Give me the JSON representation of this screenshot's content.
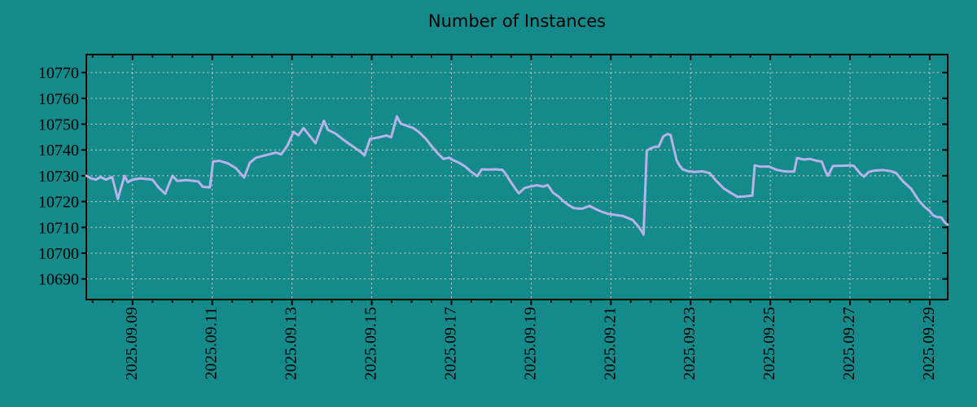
{
  "colors": {
    "background": "#148a8a",
    "line": "#b7b3ea",
    "grid": "#d2d2d2",
    "frame": "#000000",
    "text": "#000000"
  },
  "chart_data": {
    "type": "line",
    "title": "Number of Instances",
    "legend": false,
    "grid": true,
    "x_axis": {
      "unit": "date (2025 September, fractional day-of-month)",
      "xlim": [
        7.84,
        29.45
      ],
      "tick_positions": [
        9,
        11,
        13,
        15,
        17,
        19,
        21,
        23,
        25,
        27,
        29
      ],
      "tick_labels": [
        "2025.09.09",
        "2025.09.11",
        "2025.09.13",
        "2025.09.15",
        "2025.09.17",
        "2025.09.19",
        "2025.09.21",
        "2025.09.23",
        "2025.09.25",
        "2025.09.27",
        "2025.09.29"
      ],
      "minor_tick_step": 0.5
    },
    "y_axis": {
      "ylim": [
        10682,
        10777
      ],
      "ticks": [
        10690,
        10700,
        10710,
        10720,
        10730,
        10740,
        10750,
        10760,
        10770
      ],
      "tick_labels": [
        "10690",
        "10700",
        "10710",
        "10720",
        "10730",
        "10740",
        "10750",
        "10760",
        "10770"
      ]
    },
    "series": [
      {
        "name": "instances",
        "points": [
          [
            7.84,
            10730
          ],
          [
            7.96,
            10729
          ],
          [
            8.08,
            10728.5
          ],
          [
            8.2,
            10729.5
          ],
          [
            8.33,
            10728.5
          ],
          [
            8.49,
            10729.5
          ],
          [
            8.63,
            10721
          ],
          [
            8.8,
            10730
          ],
          [
            8.88,
            10727.5
          ],
          [
            9.0,
            10728.5
          ],
          [
            9.2,
            10729
          ],
          [
            9.5,
            10728.5
          ],
          [
            9.65,
            10725.5
          ],
          [
            9.82,
            10723
          ],
          [
            10.0,
            10730
          ],
          [
            10.12,
            10728
          ],
          [
            10.35,
            10728.3
          ],
          [
            10.65,
            10727.8
          ],
          [
            10.76,
            10725.7
          ],
          [
            10.94,
            10725.5
          ],
          [
            11.02,
            10735.5
          ],
          [
            11.18,
            10735.8
          ],
          [
            11.39,
            10734.8
          ],
          [
            11.59,
            10733
          ],
          [
            11.8,
            10729.3
          ],
          [
            11.94,
            10735
          ],
          [
            12.1,
            10737
          ],
          [
            12.35,
            10738
          ],
          [
            12.6,
            10739
          ],
          [
            12.73,
            10738.3
          ],
          [
            12.88,
            10741.6
          ],
          [
            13.04,
            10747
          ],
          [
            13.16,
            10745.7
          ],
          [
            13.29,
            10748.5
          ],
          [
            13.49,
            10744.6
          ],
          [
            13.59,
            10742.6
          ],
          [
            13.8,
            10751.3
          ],
          [
            13.9,
            10747.8
          ],
          [
            14.1,
            10746.3
          ],
          [
            14.31,
            10743.7
          ],
          [
            14.51,
            10741.6
          ],
          [
            14.71,
            10739.4
          ],
          [
            14.82,
            10737.9
          ],
          [
            14.96,
            10744.3
          ],
          [
            15.16,
            10744.8
          ],
          [
            15.37,
            10745.6
          ],
          [
            15.49,
            10744.9
          ],
          [
            15.63,
            10753
          ],
          [
            15.73,
            10750.2
          ],
          [
            15.88,
            10749.4
          ],
          [
            16.04,
            10748.5
          ],
          [
            16.18,
            10747
          ],
          [
            16.35,
            10744.5
          ],
          [
            16.5,
            10741.5
          ],
          [
            16.65,
            10738.8
          ],
          [
            16.8,
            10736.5
          ],
          [
            16.94,
            10737
          ],
          [
            17.05,
            10736
          ],
          [
            17.2,
            10735
          ],
          [
            17.35,
            10733.5
          ],
          [
            17.5,
            10731.5
          ],
          [
            17.65,
            10729.8
          ],
          [
            17.76,
            10732.5
          ],
          [
            17.92,
            10732.4
          ],
          [
            18.1,
            10732.5
          ],
          [
            18.27,
            10732.3
          ],
          [
            18.33,
            10731.4
          ],
          [
            18.49,
            10727.6
          ],
          [
            18.63,
            10724.4
          ],
          [
            18.69,
            10723.2
          ],
          [
            18.84,
            10725.3
          ],
          [
            19.0,
            10725.9
          ],
          [
            19.15,
            10726.3
          ],
          [
            19.3,
            10725.8
          ],
          [
            19.42,
            10726.4
          ],
          [
            19.55,
            10723.4
          ],
          [
            19.69,
            10721.9
          ],
          [
            19.82,
            10720
          ],
          [
            19.96,
            10718.4
          ],
          [
            20.08,
            10717.4
          ],
          [
            20.27,
            10717.2
          ],
          [
            20.47,
            10718.3
          ],
          [
            20.63,
            10717
          ],
          [
            20.78,
            10716
          ],
          [
            20.94,
            10715.2
          ],
          [
            21.12,
            10714.8
          ],
          [
            21.3,
            10714.4
          ],
          [
            21.45,
            10713.5
          ],
          [
            21.55,
            10712.8
          ],
          [
            21.69,
            10710.3
          ],
          [
            21.76,
            10708.8
          ],
          [
            21.82,
            10707.2
          ],
          [
            21.9,
            10739.8
          ],
          [
            22.0,
            10740.6
          ],
          [
            22.1,
            10741.2
          ],
          [
            22.2,
            10741.3
          ],
          [
            22.32,
            10745.3
          ],
          [
            22.42,
            10746.2
          ],
          [
            22.5,
            10745.8
          ],
          [
            22.57,
            10741
          ],
          [
            22.65,
            10736
          ],
          [
            22.72,
            10734
          ],
          [
            22.8,
            10732.5
          ],
          [
            22.92,
            10731.8
          ],
          [
            23.1,
            10731.5
          ],
          [
            23.3,
            10731.7
          ],
          [
            23.48,
            10731
          ],
          [
            23.63,
            10728.2
          ],
          [
            23.84,
            10725
          ],
          [
            24.04,
            10723.1
          ],
          [
            24.18,
            10721.8
          ],
          [
            24.35,
            10722
          ],
          [
            24.55,
            10722.3
          ],
          [
            24.61,
            10734
          ],
          [
            24.76,
            10733.5
          ],
          [
            24.96,
            10733.6
          ],
          [
            25.16,
            10732.3
          ],
          [
            25.31,
            10731.8
          ],
          [
            25.43,
            10731.6
          ],
          [
            25.6,
            10731.6
          ],
          [
            25.67,
            10736.9
          ],
          [
            25.84,
            10736.3
          ],
          [
            26.0,
            10736.5
          ],
          [
            26.16,
            10735.8
          ],
          [
            26.29,
            10735.5
          ],
          [
            26.39,
            10731.5
          ],
          [
            26.45,
            10730
          ],
          [
            26.57,
            10733.8
          ],
          [
            26.8,
            10733.9
          ],
          [
            27.0,
            10734
          ],
          [
            27.1,
            10733.8
          ],
          [
            27.27,
            10730.6
          ],
          [
            27.35,
            10729.7
          ],
          [
            27.47,
            10731.5
          ],
          [
            27.61,
            10732
          ],
          [
            27.82,
            10732.2
          ],
          [
            28.02,
            10731.8
          ],
          [
            28.16,
            10731
          ],
          [
            28.33,
            10727.8
          ],
          [
            28.53,
            10725
          ],
          [
            28.73,
            10720.3
          ],
          [
            28.88,
            10717.8
          ],
          [
            29.0,
            10716.3
          ],
          [
            29.08,
            10714.7
          ],
          [
            29.18,
            10714
          ],
          [
            29.29,
            10713.8
          ],
          [
            29.37,
            10712
          ],
          [
            29.45,
            10711
          ]
        ]
      }
    ]
  }
}
